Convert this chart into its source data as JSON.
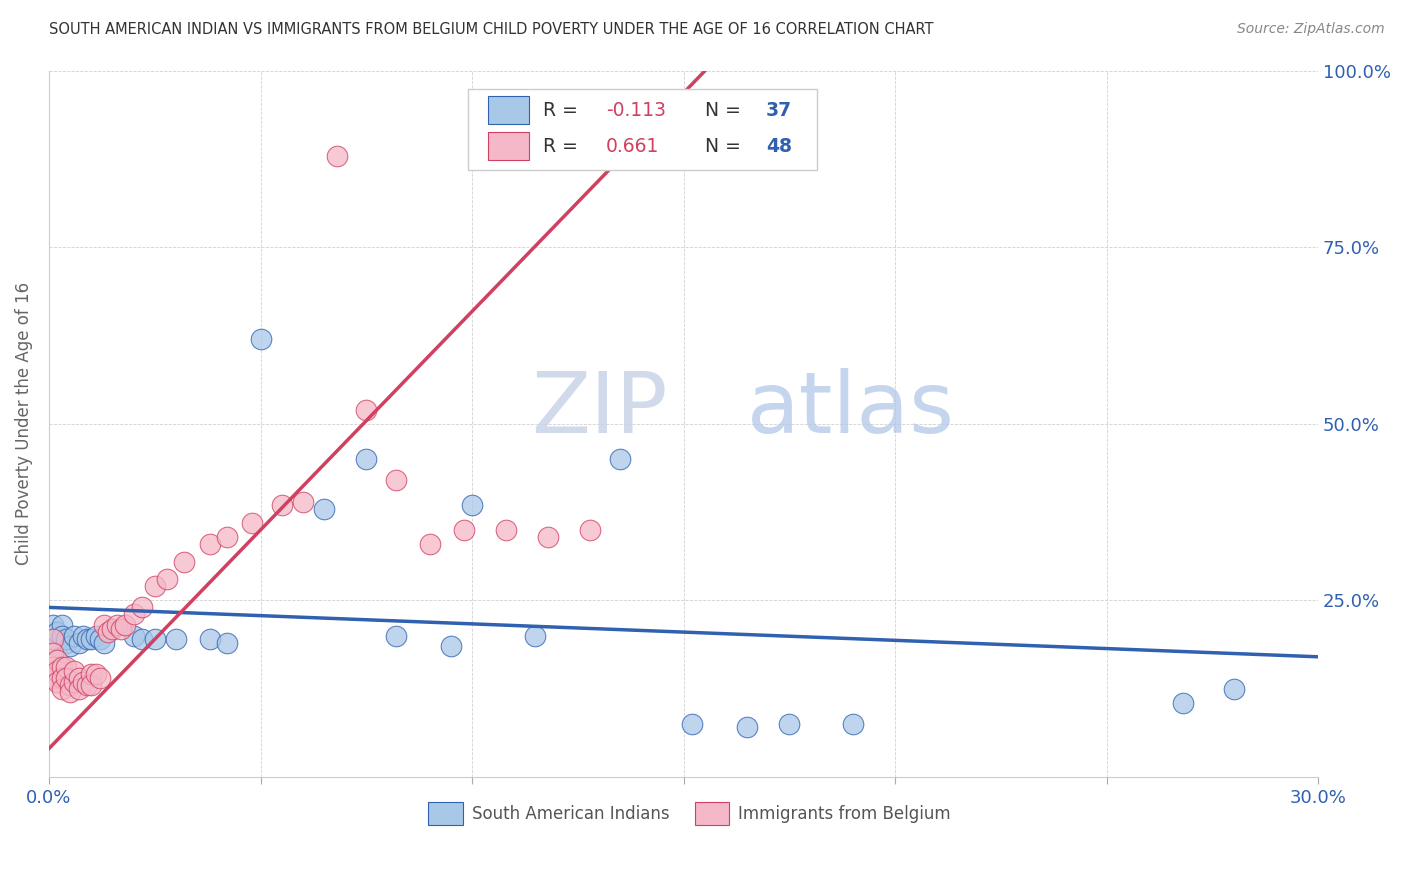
{
  "title": "SOUTH AMERICAN INDIAN VS IMMIGRANTS FROM BELGIUM CHILD POVERTY UNDER THE AGE OF 16 CORRELATION CHART",
  "source": "Source: ZipAtlas.com",
  "ylabel": "Child Poverty Under the Age of 16",
  "xlim": [
    0,
    0.3
  ],
  "ylim": [
    0,
    1.0
  ],
  "xtick_positions": [
    0.0,
    0.05,
    0.1,
    0.15,
    0.2,
    0.25,
    0.3
  ],
  "xticklabels": [
    "0.0%",
    "",
    "",
    "",
    "",
    "",
    "30.0%"
  ],
  "ytick_positions": [
    0.0,
    0.25,
    0.5,
    0.75,
    1.0
  ],
  "yticklabels": [
    "",
    "25.0%",
    "50.0%",
    "75.0%",
    "100.0%"
  ],
  "watermark_zip": "ZIP",
  "watermark_atlas": "atlas",
  "legend_r1": "R = -0.113",
  "legend_n1": "N = 37",
  "legend_r2": "R =  0.661",
  "legend_n2": "N = 48",
  "series1_label": "South American Indians",
  "series2_label": "Immigrants from Belgium",
  "series1_color": "#a8c8e8",
  "series2_color": "#f4b8c8",
  "line1_color": "#3060b0",
  "line2_color": "#d04060",
  "r_value_color": "#d04060",
  "n_value_color": "#3060b0",
  "axis_color": "#3060b0",
  "background_color": "#ffffff",
  "title_color": "#333333",
  "blue_line_x0": 0.0,
  "blue_line_y0": 0.24,
  "blue_line_x1": 0.3,
  "blue_line_y1": 0.17,
  "pink_line_x0": 0.0,
  "pink_line_y0": 0.04,
  "pink_line_x1": 0.155,
  "pink_line_y1": 1.0,
  "blue_x": [
    0.001,
    0.001,
    0.002,
    0.002,
    0.003,
    0.003,
    0.004,
    0.004,
    0.005,
    0.006,
    0.007,
    0.008,
    0.009,
    0.01,
    0.011,
    0.012,
    0.013,
    0.02,
    0.022,
    0.025,
    0.03,
    0.038,
    0.042,
    0.05,
    0.065,
    0.075,
    0.082,
    0.095,
    0.1,
    0.115,
    0.135,
    0.152,
    0.165,
    0.175,
    0.19,
    0.268,
    0.28
  ],
  "blue_y": [
    0.215,
    0.195,
    0.185,
    0.205,
    0.215,
    0.2,
    0.19,
    0.195,
    0.185,
    0.2,
    0.19,
    0.2,
    0.195,
    0.195,
    0.2,
    0.195,
    0.19,
    0.2,
    0.195,
    0.195,
    0.195,
    0.195,
    0.19,
    0.62,
    0.38,
    0.45,
    0.2,
    0.185,
    0.385,
    0.2,
    0.45,
    0.075,
    0.07,
    0.075,
    0.075,
    0.105,
    0.125
  ],
  "pink_x": [
    0.001,
    0.001,
    0.001,
    0.001,
    0.002,
    0.002,
    0.002,
    0.003,
    0.003,
    0.003,
    0.004,
    0.004,
    0.005,
    0.005,
    0.006,
    0.006,
    0.007,
    0.007,
    0.008,
    0.009,
    0.01,
    0.01,
    0.011,
    0.012,
    0.013,
    0.014,
    0.015,
    0.016,
    0.017,
    0.018,
    0.02,
    0.022,
    0.025,
    0.028,
    0.032,
    0.038,
    0.042,
    0.048,
    0.055,
    0.06,
    0.068,
    0.075,
    0.082,
    0.09,
    0.098,
    0.108,
    0.118,
    0.128
  ],
  "pink_y": [
    0.195,
    0.175,
    0.155,
    0.14,
    0.165,
    0.15,
    0.135,
    0.155,
    0.14,
    0.125,
    0.155,
    0.14,
    0.13,
    0.12,
    0.135,
    0.15,
    0.14,
    0.125,
    0.135,
    0.13,
    0.145,
    0.13,
    0.145,
    0.14,
    0.215,
    0.205,
    0.21,
    0.215,
    0.21,
    0.215,
    0.23,
    0.24,
    0.27,
    0.28,
    0.305,
    0.33,
    0.34,
    0.36,
    0.385,
    0.39,
    0.88,
    0.52,
    0.42,
    0.33,
    0.35,
    0.35,
    0.34,
    0.35
  ]
}
